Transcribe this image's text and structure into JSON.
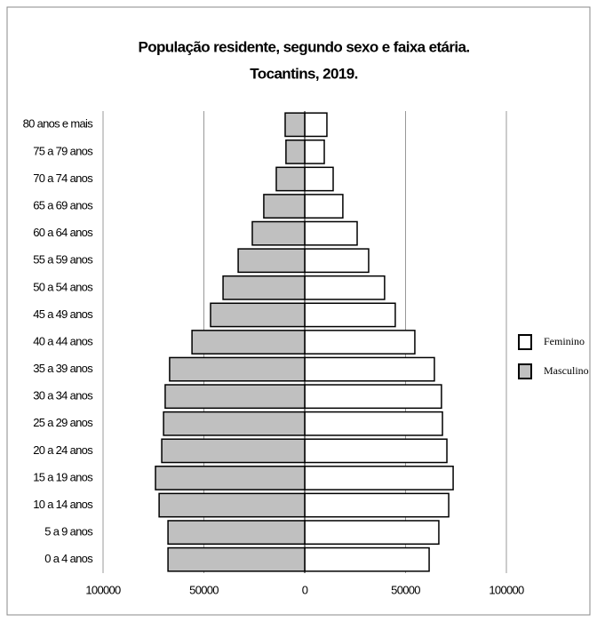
{
  "chart_data": {
    "type": "pyramid",
    "title": "População residente, segundo sexo e faixa etária.",
    "subtitle": "Tocantins, 2019.",
    "categories": [
      "0 a 4 anos",
      "5 a 9 anos",
      "10 a 14 anos",
      "15 a 19 anos",
      "20 a 24 anos",
      "25 a 29 anos",
      "30 a 34 anos",
      "35 a 39 anos",
      "40 a 44 anos",
      "45 a 49 anos",
      "50 a 54 anos",
      "55 a 59 anos",
      "60 a 64 anos",
      "65 a 69 anos",
      "70 a 74 anos",
      "75 a 79 anos",
      "80 anos e mais"
    ],
    "series": [
      {
        "name": "Feminino",
        "color": "#ffffff",
        "values": [
          61700,
          66500,
          71400,
          73600,
          70500,
          68300,
          67800,
          64300,
          54600,
          44900,
          39600,
          31700,
          26000,
          18900,
          14100,
          9700,
          11000
        ]
      },
      {
        "name": "Masculino",
        "color": "#c0c0c0",
        "values": [
          -67800,
          -67800,
          -72200,
          -74000,
          -70900,
          -70000,
          -69200,
          -67000,
          -55900,
          -46700,
          -40500,
          -33000,
          -26000,
          -20300,
          -14100,
          -9300,
          -9700
        ]
      }
    ],
    "xlim": [
      -100000,
      100000
    ],
    "xticks": [
      {
        "value": -100000,
        "label": "100000"
      },
      {
        "value": -50000,
        "label": "50000"
      },
      0,
      50000,
      100000
    ],
    "grid": true,
    "legend": "right"
  }
}
